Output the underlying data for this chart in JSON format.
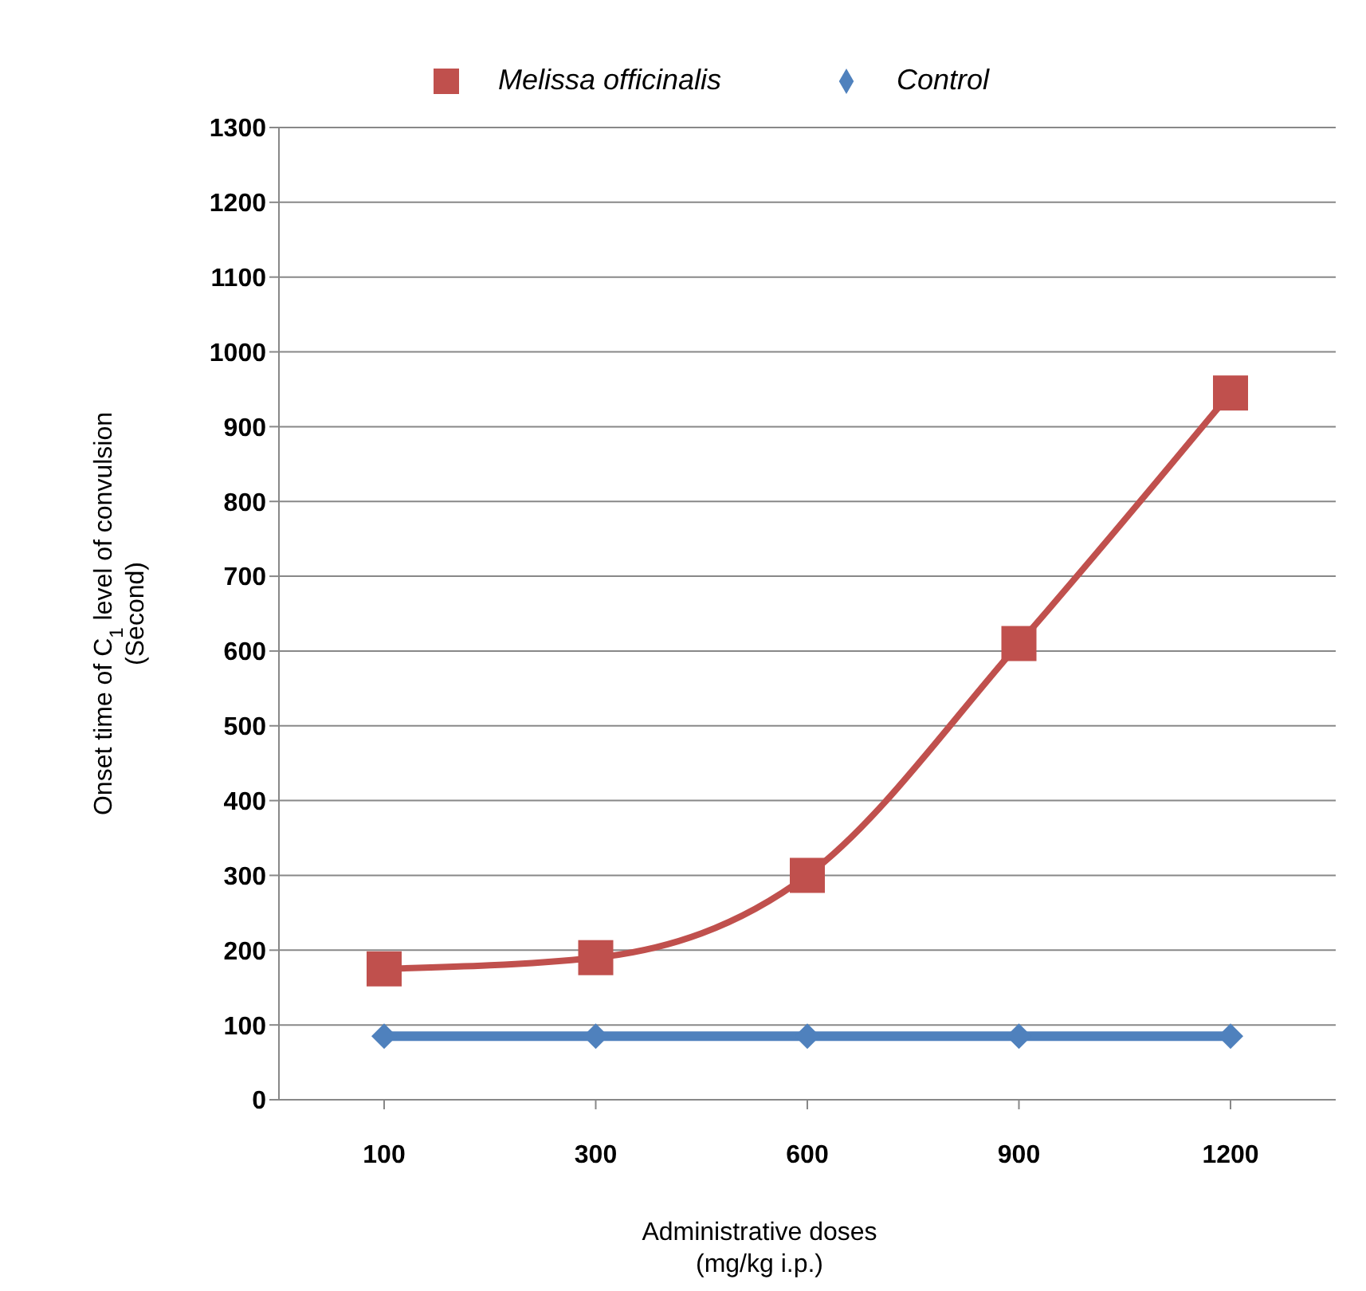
{
  "chart_data": {
    "type": "line",
    "xlabel": "Administrative doses\n(mg/kg i.p.)",
    "ylabel": "Onset time of C$_{1}$ level of convulsion\n(Second)",
    "categories": [
      "100",
      "300",
      "600",
      "900",
      "1200"
    ],
    "series": [
      {
        "name": "Melissa officinalis",
        "color": "#c0504d",
        "marker": "square",
        "values": [
          175,
          190,
          300,
          610,
          945
        ]
      },
      {
        "name": "Control",
        "color": "#4f81bd",
        "marker": "diamond",
        "values": [
          85,
          85,
          85,
          85,
          85
        ]
      }
    ],
    "ylim": [
      0,
      1300
    ],
    "yticks": [
      0,
      100,
      200,
      300,
      400,
      500,
      600,
      700,
      800,
      900,
      1000,
      1100,
      1200,
      1300
    ],
    "grid": "y",
    "legend": "top",
    "line_style": "solid"
  }
}
